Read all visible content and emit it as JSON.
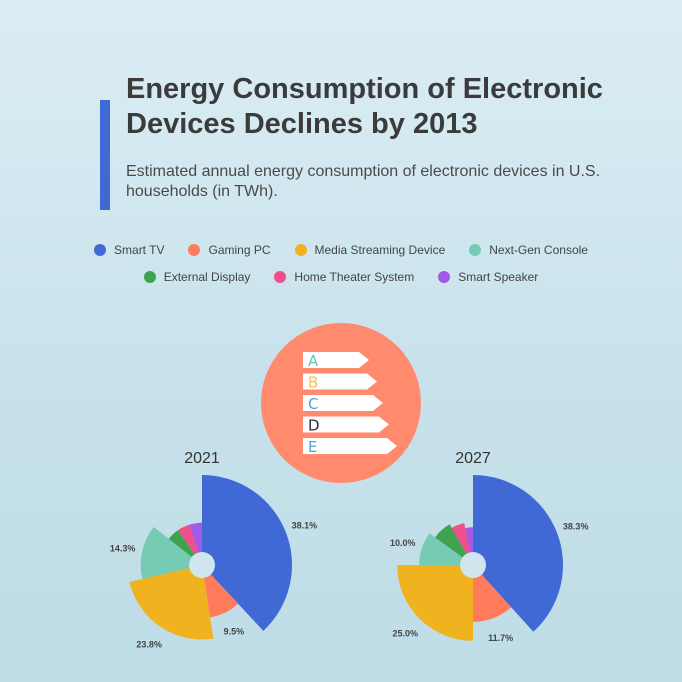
{
  "header": {
    "title": "Energy Consumption of Electronic Devices Declines by 2013",
    "subtitle": "Estimated annual energy consumption of electronic devices in U.S. households (in TWh)."
  },
  "colors": {
    "accent": "#4169d6",
    "badge": "#ff8a6e",
    "series": [
      "#4169d6",
      "#ff7b5c",
      "#f0b21f",
      "#76cbb5",
      "#3fa34d",
      "#ef4f8b",
      "#a259e6"
    ]
  },
  "legend": {
    "items": [
      "Smart TV",
      "Gaming PC",
      "Media Streaming Device",
      "Next-Gen Console",
      "External Display",
      "Home Theater System",
      "Smart Speaker"
    ]
  },
  "badge": {
    "icon": "energy-rating-icon",
    "letters": [
      "A",
      "B",
      "C",
      "D",
      "E"
    ],
    "letter_colors": [
      "#5ec9b4",
      "#f3c44a",
      "#4ba3d9",
      "#2b2b3b",
      "#4ba3d9"
    ]
  },
  "chart_data": [
    {
      "type": "pie",
      "title": "2021",
      "categories": [
        "Smart TV",
        "Gaming PC",
        "Media Streaming Device",
        "Next-Gen Console",
        "External Display",
        "Home Theater System",
        "Smart Speaker"
      ],
      "values": [
        38.1,
        9.5,
        23.8,
        14.3,
        4.8,
        4.8,
        4.8
      ],
      "labels": [
        "38.1%",
        "9.5%",
        "23.8%",
        "14.3%",
        "",
        "",
        ""
      ]
    },
    {
      "type": "pie",
      "title": "2027",
      "categories": [
        "Smart TV",
        "Gaming PC",
        "Media Streaming Device",
        "Next-Gen Console",
        "External Display",
        "Home Theater System",
        "Smart Speaker"
      ],
      "values": [
        38.3,
        11.7,
        25.0,
        10.0,
        6.7,
        5.0,
        3.3
      ],
      "labels": [
        "38.3%",
        "11.7%",
        "25.0%",
        "10.0%",
        "",
        "",
        ""
      ]
    }
  ]
}
